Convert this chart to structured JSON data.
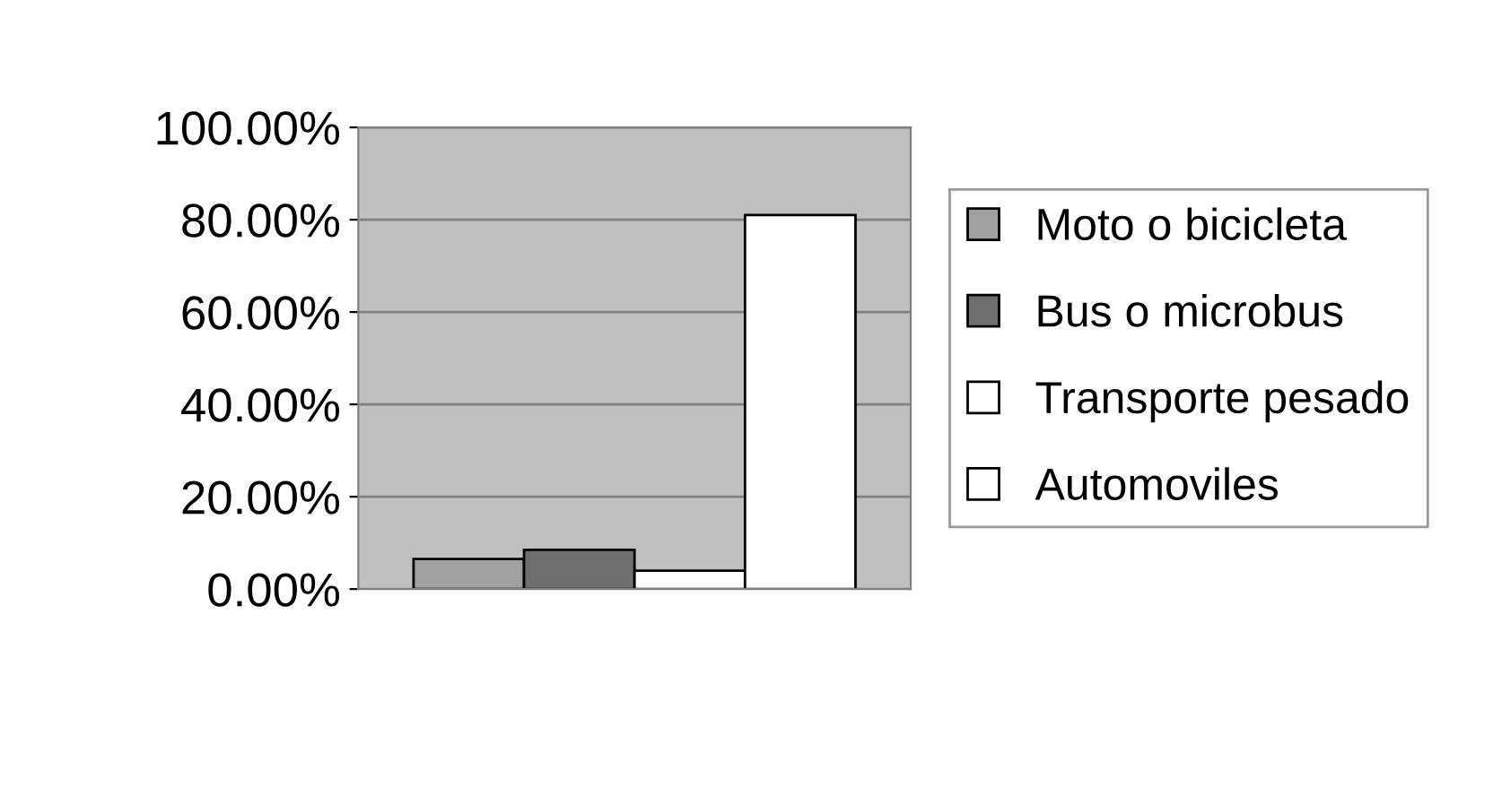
{
  "chart_data": {
    "type": "bar",
    "categories": [
      null
    ],
    "series": [
      {
        "name": "Moto o bicicleta",
        "color": "#a0a0a0",
        "values": [
          6.5
        ]
      },
      {
        "name": "Bus o microbus",
        "color": "#6e6e6e",
        "values": [
          8.5
        ]
      },
      {
        "name": "Transporte pesado",
        "color": "#ffffff",
        "values": [
          4
        ]
      },
      {
        "name": "Automoviles",
        "color": "#ffffff",
        "values": [
          81
        ]
      }
    ],
    "ylim": [
      0,
      100
    ],
    "yticks": [
      {
        "value": 0,
        "label": "0.00%"
      },
      {
        "value": 20,
        "label": "20.00%"
      },
      {
        "value": 40,
        "label": "40.00%"
      },
      {
        "value": 60,
        "label": "60.00%"
      },
      {
        "value": 80,
        "label": "80.00%"
      },
      {
        "value": 100,
        "label": "100.00%"
      }
    ],
    "grid": "y",
    "legend": "right"
  }
}
